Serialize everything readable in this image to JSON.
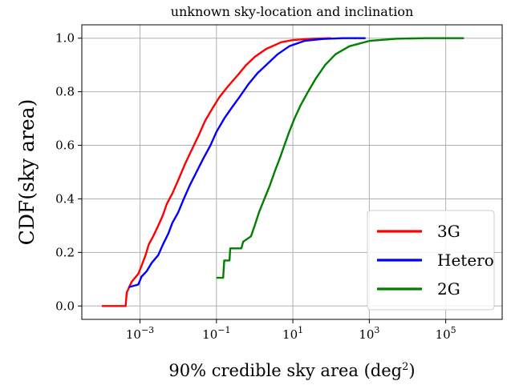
{
  "chart_data": {
    "type": "line",
    "title": "unknown sky-location and inclination",
    "xlabel_main": "90% credible sky area (deg",
    "xlabel_sup": "2",
    "xlabel_tail": ")",
    "ylabel": "CDF(sky area)",
    "xscale": "log",
    "xlim": [
      3e-05,
      3000000
    ],
    "ylim": [
      -0.05,
      1.05
    ],
    "grid": true,
    "legend_position": "lower-right",
    "x_ticks": [
      {
        "value": 0.001,
        "base": "10",
        "exp": "−3"
      },
      {
        "value": 0.1,
        "base": "10",
        "exp": "−1"
      },
      {
        "value": 10,
        "base": "10",
        "exp": "1"
      },
      {
        "value": 1000,
        "base": "10",
        "exp": "3"
      },
      {
        "value": 100000,
        "base": "10",
        "exp": "5"
      }
    ],
    "y_ticks": [
      {
        "value": 0.0,
        "label": "0.0"
      },
      {
        "value": 0.2,
        "label": "0.2"
      },
      {
        "value": 0.4,
        "label": "0.4"
      },
      {
        "value": 0.6,
        "label": "0.6"
      },
      {
        "value": 0.8,
        "label": "0.8"
      },
      {
        "value": 1.0,
        "label": "1.0"
      }
    ],
    "series": [
      {
        "name": "3G",
        "color": "#ff0000",
        "points": [
          [
            0.0001,
            0.0
          ],
          [
            0.00042,
            0.0
          ],
          [
            0.00045,
            0.05
          ],
          [
            0.0006,
            0.09
          ],
          [
            0.0009,
            0.12
          ],
          [
            0.0011,
            0.15
          ],
          [
            0.0014,
            0.19
          ],
          [
            0.0017,
            0.23
          ],
          [
            0.0022,
            0.26
          ],
          [
            0.003,
            0.3
          ],
          [
            0.004,
            0.34
          ],
          [
            0.005,
            0.38
          ],
          [
            0.007,
            0.42
          ],
          [
            0.01,
            0.47
          ],
          [
            0.015,
            0.53
          ],
          [
            0.022,
            0.58
          ],
          [
            0.035,
            0.64
          ],
          [
            0.05,
            0.69
          ],
          [
            0.08,
            0.74
          ],
          [
            0.12,
            0.78
          ],
          [
            0.2,
            0.82
          ],
          [
            0.35,
            0.86
          ],
          [
            0.6,
            0.9
          ],
          [
            1.0,
            0.93
          ],
          [
            2.0,
            0.96
          ],
          [
            5.0,
            0.985
          ],
          [
            10.0,
            0.993
          ],
          [
            30.0,
            0.998
          ],
          [
            100.0,
            1.0
          ]
        ]
      },
      {
        "name": "Hetero",
        "color": "#0000ff",
        "points": [
          [
            0.0005,
            0.07
          ],
          [
            0.0009,
            0.08
          ],
          [
            0.0011,
            0.11
          ],
          [
            0.0015,
            0.13
          ],
          [
            0.002,
            0.16
          ],
          [
            0.003,
            0.19
          ],
          [
            0.004,
            0.23
          ],
          [
            0.0055,
            0.27
          ],
          [
            0.007,
            0.31
          ],
          [
            0.01,
            0.35
          ],
          [
            0.014,
            0.4
          ],
          [
            0.02,
            0.45
          ],
          [
            0.03,
            0.5
          ],
          [
            0.045,
            0.55
          ],
          [
            0.07,
            0.6
          ],
          [
            0.1,
            0.65
          ],
          [
            0.16,
            0.7
          ],
          [
            0.25,
            0.74
          ],
          [
            0.4,
            0.78
          ],
          [
            0.7,
            0.83
          ],
          [
            1.2,
            0.87
          ],
          [
            2.0,
            0.9
          ],
          [
            4.0,
            0.94
          ],
          [
            8.0,
            0.97
          ],
          [
            20.0,
            0.99
          ],
          [
            60.0,
            0.997
          ],
          [
            200.0,
            1.0
          ],
          [
            800.0,
            1.0
          ]
        ]
      },
      {
        "name": "2G",
        "color": "#008000",
        "points": [
          [
            0.1,
            0.105
          ],
          [
            0.15,
            0.105
          ],
          [
            0.16,
            0.17
          ],
          [
            0.22,
            0.17
          ],
          [
            0.23,
            0.215
          ],
          [
            0.45,
            0.215
          ],
          [
            0.5,
            0.24
          ],
          [
            0.8,
            0.26
          ],
          [
            1.0,
            0.3
          ],
          [
            1.3,
            0.35
          ],
          [
            1.8,
            0.4
          ],
          [
            2.5,
            0.45
          ],
          [
            3.3,
            0.5
          ],
          [
            4.5,
            0.55
          ],
          [
            6.0,
            0.6
          ],
          [
            8.0,
            0.65
          ],
          [
            11.0,
            0.7
          ],
          [
            16.0,
            0.75
          ],
          [
            25.0,
            0.8
          ],
          [
            40.0,
            0.85
          ],
          [
            70.0,
            0.9
          ],
          [
            130.0,
            0.94
          ],
          [
            300.0,
            0.97
          ],
          [
            1000.0,
            0.99
          ],
          [
            5000.0,
            0.998
          ],
          [
            30000.0,
            1.0
          ],
          [
            300000.0,
            1.0
          ]
        ]
      }
    ]
  }
}
